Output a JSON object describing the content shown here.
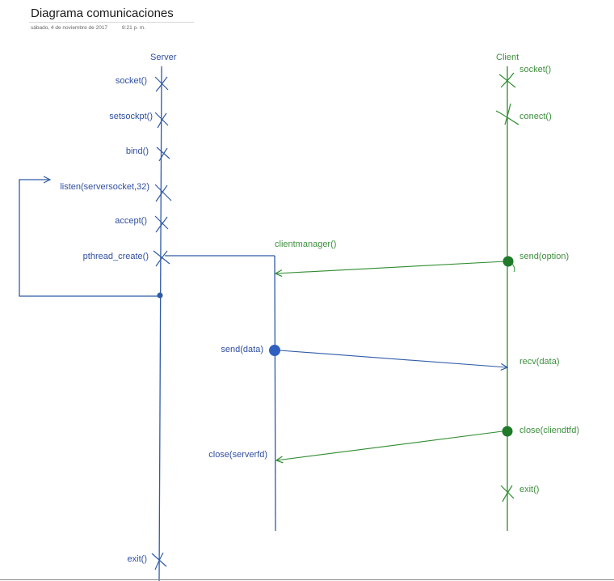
{
  "page": {
    "title": "Diagrama comunicaciones",
    "date": "sábado, 4 de noviembre de 2017",
    "time": "8:21 p. m."
  },
  "colors": {
    "server": "#2f5aa8",
    "client": "#2e8b2e",
    "label_blue": "#2f4f9f",
    "label_green": "#3f8f3f"
  },
  "server": {
    "name": "Server",
    "calls": [
      "socket()",
      "setsockpt()",
      "bind()",
      "listen(serversocket,32)",
      "accept()",
      "pthread_create()",
      "exit()"
    ]
  },
  "client": {
    "name": "Client",
    "calls": [
      "socket()",
      "conect()",
      "send(option)",
      "recv(data)",
      "close(cliendtfd)",
      "exit()"
    ]
  },
  "thread": {
    "name": "clientmanager()",
    "calls": [
      "send(data)",
      "close(serverfd)"
    ]
  }
}
